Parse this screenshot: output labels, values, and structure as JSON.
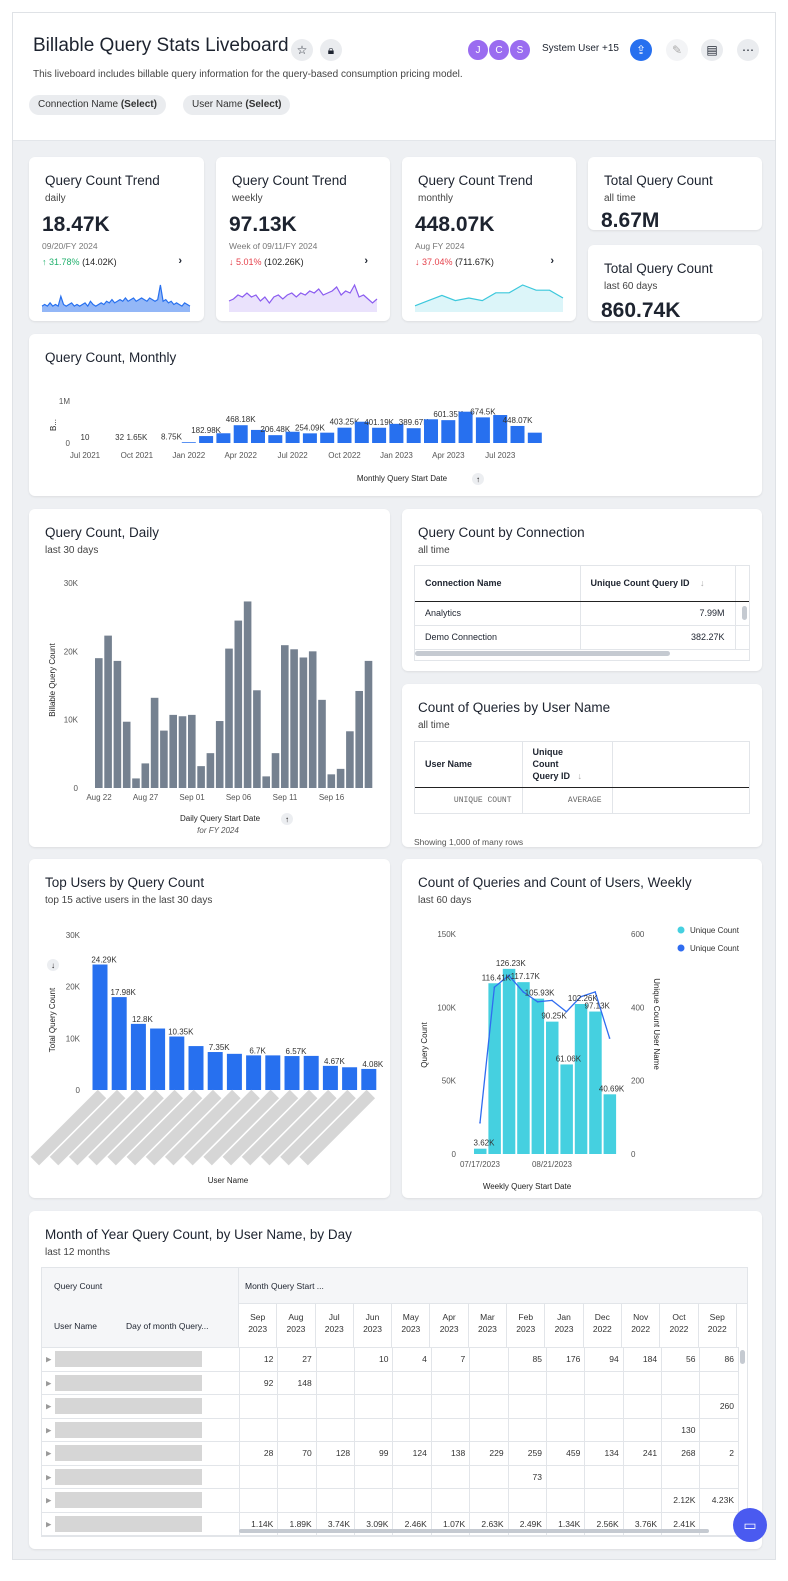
{
  "header": {
    "title": "Billable Query Stats Liveboard",
    "description": "This liveboard includes billable query information for the query-based consumption pricing model.",
    "avatars": [
      "J",
      "C",
      "S"
    ],
    "users_label": "System User +15",
    "filters": [
      {
        "label": "Connection Name",
        "value": "(Select)"
      },
      {
        "label": "User Name",
        "value": "(Select)"
      }
    ],
    "icons": [
      "star-icon",
      "lock-icon",
      "share-icon",
      "edit-icon",
      "comment-icon",
      "more-icon"
    ],
    "accent": "#2770ef",
    "avatar_color": "#9a6cf0"
  },
  "kpis": [
    {
      "title": "Query Count Trend",
      "subtitle": "daily",
      "value": "18.47K",
      "date": "09/20/FY 2024",
      "change": "31.78%",
      "direction": "up",
      "prev": "(14.02K)",
      "spark_color": "#2770ef",
      "spark": [
        3,
        4,
        3,
        5,
        3,
        4,
        3,
        9,
        4,
        3,
        4,
        5,
        3,
        4,
        3,
        4,
        5,
        3,
        6,
        4,
        3,
        4,
        5,
        4,
        6,
        5,
        7,
        5,
        6,
        7,
        6,
        8,
        6,
        7,
        8,
        6,
        7,
        8,
        7,
        6,
        8,
        7,
        6,
        7,
        16,
        6,
        7,
        5,
        6,
        4,
        5,
        4,
        3,
        5,
        4,
        3
      ]
    },
    {
      "title": "Query Count Trend",
      "subtitle": "weekly",
      "value": "97.13K",
      "date": "Week of 09/11/FY 2024",
      "change": "5.01%",
      "direction": "down",
      "prev": "(102.26K)",
      "spark_color": "#8b5cf0",
      "spark": [
        5,
        6,
        8,
        7,
        9,
        7,
        8,
        5,
        7,
        4,
        7,
        8,
        6,
        8,
        9,
        7,
        9,
        8,
        10,
        9,
        11,
        8,
        9,
        10,
        12,
        8,
        10,
        9,
        13,
        7,
        8,
        6,
        4,
        6
      ]
    },
    {
      "title": "Query Count Trend",
      "subtitle": "monthly",
      "value": "448.07K",
      "date": "Aug FY 2024",
      "change": "37.04%",
      "direction": "down",
      "prev": "(711.67K)",
      "spark_color": "#3cc8dc",
      "spark": [
        2,
        4,
        6,
        4,
        5,
        4,
        7,
        7,
        10,
        8,
        8,
        5
      ]
    },
    {
      "title": "Total Query Count",
      "subtitle": "all time",
      "value": "8.67M"
    },
    {
      "title": "Total Query Count",
      "subtitle": "last 60 days",
      "value": "860.74K"
    }
  ],
  "chart_data": [
    {
      "type": "bar",
      "title": "Query Count, Monthly",
      "xlabel": "Monthly Query Start Date",
      "ylabel": "B...",
      "yticks": [
        "0",
        "1M"
      ],
      "ylim": [
        0,
        1000000
      ],
      "color": "#2770ef",
      "categories": [
        "Jul 2021",
        "Aug 2021",
        "Sep 2021",
        "Oct 2021",
        "Nov 2021",
        "Dec 2021",
        "Jan 2022",
        "Feb 2022",
        "Mar 2022",
        "Apr 2022",
        "May 2022",
        "Jun 2022",
        "Jul 2022",
        "Aug 2022",
        "Sep 2022",
        "Oct 2022",
        "Nov 2022",
        "Dec 2022",
        "Jan 2023",
        "Feb 2023",
        "Mar 2023",
        "Apr 2023",
        "May 2023",
        "Jun 2023",
        "Jul 2023",
        "Aug 2023",
        "Sep 2023"
      ],
      "xticks": [
        "Jul 2021",
        "Oct 2021",
        "Jan 2022",
        "Apr 2022",
        "Jul 2022",
        "Oct 2022",
        "Jan 2023",
        "Apr 2023",
        "Jul 2023"
      ],
      "values": [
        10,
        0,
        32,
        1650,
        0,
        8750,
        20000,
        182980,
        256000,
        468180,
        344000,
        206480,
        296000,
        254090,
        272000,
        403250,
        560000,
        401190,
        504000,
        389670,
        624000,
        601350,
        824000,
        674500,
        736000,
        448070,
        272000
      ],
      "labels": [
        "10",
        "",
        "32",
        "1.65K",
        "",
        "8.75K",
        "",
        "182.98K",
        "",
        "468.18K",
        "",
        "206.48K",
        "",
        "254.09K",
        "",
        "403.25K",
        "",
        "401.19K",
        "",
        "389.67K",
        "",
        "601.35K",
        "",
        "674.5K",
        "",
        "448.07K",
        ""
      ]
    },
    {
      "type": "bar",
      "title": "Query Count, Daily",
      "subtitle": "last 30 days",
      "xlabel": "Daily Query Start Date",
      "xnote": "for FY 2024",
      "ylabel": "Billable Query Count",
      "ylim": [
        0,
        30000
      ],
      "yticks": [
        "0",
        "10K",
        "20K",
        "30K"
      ],
      "color": "#758190",
      "xticks": [
        "Aug 22",
        "Aug 27",
        "Sep 01",
        "Sep 06",
        "Sep 11",
        "Sep 16"
      ],
      "values": [
        19000,
        22300,
        18600,
        9700,
        1400,
        3600,
        13200,
        8400,
        10700,
        10500,
        10700,
        3200,
        5100,
        9800,
        20400,
        24500,
        27300,
        14300,
        1700,
        5100,
        20900,
        20300,
        19100,
        20000,
        12900,
        2000,
        2800,
        8300,
        14200,
        18600
      ]
    },
    {
      "type": "bar",
      "title": "Top Users by Query Count",
      "subtitle": "top 15 active users in the last 30 days",
      "xlabel": "User Name",
      "ylabel": "Total Query Count",
      "ylim": [
        0,
        30000
      ],
      "yticks": [
        "0",
        "10K",
        "20K",
        "30K"
      ],
      "color": "#2770ef",
      "values": [
        24290,
        17980,
        12800,
        11900,
        10350,
        8500,
        7350,
        7000,
        6700,
        6700,
        6570,
        6600,
        4670,
        4400,
        4080
      ],
      "labels": [
        "24.29K",
        "17.98K",
        "12.8K",
        "",
        "10.35K",
        "",
        "7.35K",
        "",
        "6.7K",
        "",
        "6.57K",
        "",
        "4.67K",
        "",
        "4.08K"
      ]
    },
    {
      "type": "bar+line",
      "title": "Count of Queries and Count of Users, Weekly",
      "subtitle": "last 60 days",
      "xlabel": "Weekly Query Start Date",
      "ylabel": "Query Count",
      "y2label": "Unique Count User Name",
      "ylim": [
        0,
        150000
      ],
      "y2lim": [
        0,
        600
      ],
      "yticks": [
        "0",
        "50K",
        "100K",
        "150K"
      ],
      "y2ticks": [
        "0",
        "200",
        "400",
        "600"
      ],
      "xticks": [
        "07/17/2023",
        "08/21/2023"
      ],
      "series": [
        {
          "name": "Unique Count",
          "type": "bar",
          "color": "#45d0e0",
          "values": [
            3620,
            116410,
            126230,
            117170,
            105930,
            90250,
            61060,
            102260,
            97130,
            40690
          ],
          "labels": [
            "3.62K",
            "116.41K",
            "126.23K",
            "117.17K",
            "105.93K",
            "90.25K",
            "61.06K",
            "102.26K",
            "97.13K",
            "40.69K"
          ]
        },
        {
          "name": "Unique Count",
          "type": "line",
          "color": "#2f6cf0",
          "values": [
            85,
            455,
            487,
            442,
            415,
            419,
            388,
            429,
            442,
            316
          ]
        }
      ],
      "legend": "top-right"
    }
  ],
  "connection_table": {
    "title": "Query Count by Connection",
    "subtitle": "all time",
    "columns": [
      "Connection Name",
      "Unique Count Query ID"
    ],
    "rows": [
      [
        "Analytics",
        "7.99M"
      ],
      [
        "Demo Connection",
        "382.27K"
      ]
    ]
  },
  "user_table": {
    "title": "Count of Queries by User Name",
    "subtitle": "all time",
    "columns": [
      "User Name",
      "Unique Count Query ID"
    ],
    "footer": [
      "UNIQUE COUNT",
      "AVERAGE"
    ],
    "status": "Showing 1,000 of many rows"
  },
  "pivot": {
    "title": "Month of Year Query Count, by User Name, by Day",
    "subtitle": "last 12 months",
    "measure": "Query Count",
    "column_field": "Month Query Start ...",
    "row_fields": [
      "User Name",
      "Day of month Query..."
    ],
    "months": [
      [
        "Sep",
        "2023"
      ],
      [
        "Aug",
        "2023"
      ],
      [
        "Jul",
        "2023"
      ],
      [
        "Jun",
        "2023"
      ],
      [
        "May",
        "2023"
      ],
      [
        "Apr",
        "2023"
      ],
      [
        "Mar",
        "2023"
      ],
      [
        "Feb",
        "2023"
      ],
      [
        "Jan",
        "2023"
      ],
      [
        "Dec",
        "2022"
      ],
      [
        "Nov",
        "2022"
      ],
      [
        "Oct",
        "2022"
      ],
      [
        "Sep",
        "2022"
      ]
    ],
    "rows": [
      [
        "12",
        "27",
        "",
        "10",
        "4",
        "7",
        "",
        "85",
        "176",
        "94",
        "184",
        "56",
        "86"
      ],
      [
        "92",
        "148",
        "",
        "",
        "",
        "",
        "",
        "",
        "",
        "",
        "",
        "",
        ""
      ],
      [
        "",
        "",
        "",
        "",
        "",
        "",
        "",
        "",
        "",
        "",
        "",
        "",
        "260"
      ],
      [
        "",
        "",
        "",
        "",
        "",
        "",
        "",
        "",
        "",
        "",
        "",
        "130",
        ""
      ],
      [
        "28",
        "70",
        "128",
        "99",
        "124",
        "138",
        "229",
        "259",
        "459",
        "134",
        "241",
        "268",
        "2"
      ],
      [
        "",
        "",
        "",
        "",
        "",
        "",
        "",
        "73",
        "",
        "",
        "",
        "",
        ""
      ],
      [
        "",
        "",
        "",
        "",
        "",
        "",
        "",
        "",
        "",
        "",
        "",
        "2.12K",
        "4.23K"
      ],
      [
        "1.14K",
        "1.89K",
        "3.74K",
        "3.09K",
        "2.46K",
        "1.07K",
        "2.63K",
        "2.49K",
        "1.34K",
        "2.56K",
        "3.76K",
        "2.41K",
        ""
      ]
    ]
  }
}
